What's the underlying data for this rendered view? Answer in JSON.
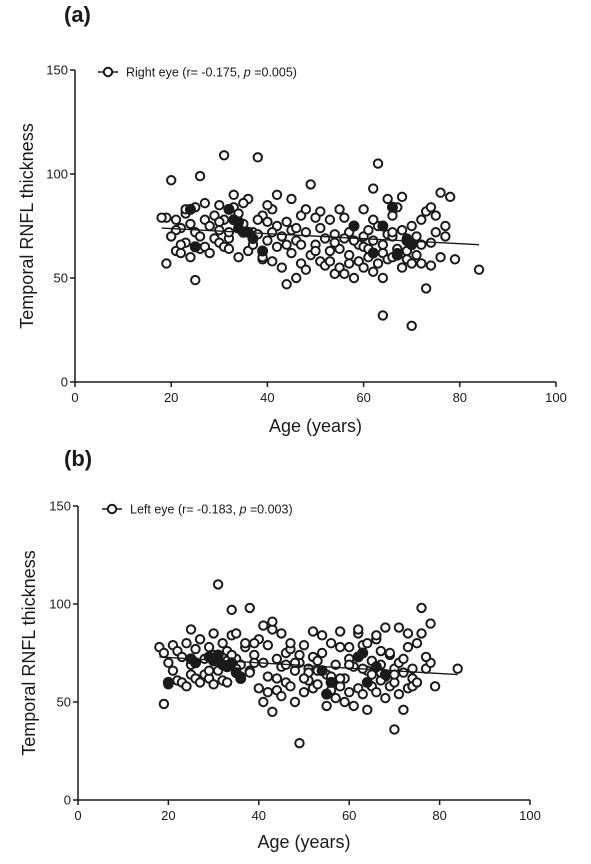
{
  "chart_data": [
    {
      "type": "scatter",
      "panel_label": "(a)",
      "legend_text": "Right eye (r= -0.175,  ",
      "legend_p": "p",
      "legend_p_value": " =0.005)",
      "legend_position": "top-left",
      "xlabel": "Age (years)",
      "ylabel": "Temporal RNFL  thickness",
      "xlim": [
        0,
        100
      ],
      "ylim": [
        0,
        150
      ],
      "xticks": [
        "0",
        "20",
        "40",
        "60",
        "80",
        "100"
      ],
      "yticks": [
        "0",
        "50",
        "100",
        "150"
      ],
      "grid": false,
      "regression": {
        "x": [
          18,
          84
        ],
        "y": [
          74,
          66
        ]
      },
      "points": [
        [
          20,
          97
        ],
        [
          31,
          109
        ],
        [
          38,
          108
        ],
        [
          26,
          99
        ],
        [
          63,
          105
        ],
        [
          19,
          79
        ],
        [
          21,
          78
        ],
        [
          22,
          74
        ],
        [
          23,
          81
        ],
        [
          24,
          76
        ],
        [
          25,
          72
        ],
        [
          26,
          70
        ],
        [
          27,
          78
        ],
        [
          28,
          75
        ],
        [
          29,
          80
        ],
        [
          30,
          73
        ],
        [
          31,
          78
        ],
        [
          32,
          69
        ],
        [
          33,
          84
        ],
        [
          34,
          81
        ],
        [
          35,
          76
        ],
        [
          36,
          88
        ],
        [
          37,
          72
        ],
        [
          38,
          71
        ],
        [
          39,
          80
        ],
        [
          40,
          68
        ],
        [
          41,
          83
        ],
        [
          42,
          75
        ],
        [
          43,
          70
        ],
        [
          44,
          77
        ],
        [
          45,
          73
        ],
        [
          46,
          68
        ],
        [
          47,
          80
        ],
        [
          48,
          72
        ],
        [
          49,
          95
        ],
        [
          50,
          66
        ],
        [
          51,
          74
        ],
        [
          52,
          69
        ],
        [
          53,
          63
        ],
        [
          54,
          71
        ],
        [
          55,
          64
        ],
        [
          56,
          79
        ],
        [
          57,
          61
        ],
        [
          58,
          75
        ],
        [
          59,
          66
        ],
        [
          60,
          70
        ],
        [
          61,
          73
        ],
        [
          62,
          68
        ],
        [
          63,
          75
        ],
        [
          64,
          62
        ],
        [
          65,
          71
        ],
        [
          66,
          80
        ],
        [
          67,
          64
        ],
        [
          68,
          73
        ],
        [
          69,
          59
        ],
        [
          70,
          75
        ],
        [
          71,
          61
        ],
        [
          72,
          66
        ],
        [
          73,
          82
        ],
        [
          74,
          67
        ],
        [
          75,
          72
        ],
        [
          76,
          91
        ],
        [
          77,
          70
        ],
        [
          78,
          89
        ],
        [
          21,
          63
        ],
        [
          22,
          62
        ],
        [
          23,
          67
        ],
        [
          24,
          60
        ],
        [
          25,
          49
        ],
        [
          26,
          64
        ],
        [
          27,
          65
        ],
        [
          28,
          62
        ],
        [
          29,
          69
        ],
        [
          30,
          67
        ],
        [
          31,
          65
        ],
        [
          32,
          64
        ],
        [
          34,
          60
        ],
        [
          36,
          63
        ],
        [
          39,
          59
        ],
        [
          41,
          58
        ],
        [
          43,
          55
        ],
        [
          44,
          47
        ],
        [
          45,
          62
        ],
        [
          46,
          50
        ],
        [
          47,
          57
        ],
        [
          48,
          54
        ],
        [
          49,
          61
        ],
        [
          50,
          63
        ],
        [
          51,
          58
        ],
        [
          52,
          56
        ],
        [
          53,
          58
        ],
        [
          54,
          52
        ],
        [
          55,
          55
        ],
        [
          56,
          52
        ],
        [
          57,
          57
        ],
        [
          58,
          50
        ],
        [
          59,
          58
        ],
        [
          60,
          55
        ],
        [
          61,
          60
        ],
        [
          62,
          53
        ],
        [
          63,
          57
        ],
        [
          64,
          50
        ],
        [
          65,
          59
        ],
        [
          66,
          60
        ],
        [
          67,
          62
        ],
        [
          68,
          55
        ],
        [
          69,
          63
        ],
        [
          70,
          57
        ],
        [
          72,
          57
        ],
        [
          74,
          56
        ],
        [
          19,
          57
        ],
        [
          18,
          79
        ],
        [
          64,
          32
        ],
        [
          70,
          27
        ],
        [
          73,
          45
        ],
        [
          84,
          54
        ],
        [
          40,
          85
        ],
        [
          42,
          90
        ],
        [
          45,
          88
        ],
        [
          48,
          83
        ],
        [
          55,
          83
        ],
        [
          60,
          83
        ],
        [
          62,
          93
        ],
        [
          65,
          88
        ],
        [
          67,
          84
        ],
        [
          68,
          89
        ],
        [
          72,
          78
        ],
        [
          74,
          84
        ],
        [
          75,
          80
        ],
        [
          77,
          75
        ],
        [
          79,
          59
        ],
        [
          76,
          60
        ],
        [
          71,
          70
        ],
        [
          57,
          72
        ],
        [
          53,
          78
        ],
        [
          51,
          82
        ],
        [
          44,
          66
        ],
        [
          42,
          65
        ],
        [
          39,
          60
        ],
        [
          37,
          66
        ],
        [
          33,
          90
        ],
        [
          35,
          86
        ],
        [
          30,
          85
        ],
        [
          27,
          86
        ],
        [
          25,
          84
        ],
        [
          23,
          83
        ],
        [
          21,
          73
        ],
        [
          20,
          70
        ],
        [
          22,
          66
        ],
        [
          38,
          78
        ],
        [
          40,
          77
        ],
        [
          46,
          74
        ],
        [
          50,
          79
        ],
        [
          58,
          68
        ],
        [
          62,
          78
        ],
        [
          66,
          70
        ],
        [
          69,
          69
        ],
        [
          30,
          77
        ],
        [
          32,
          72
        ],
        [
          41,
          72
        ],
        [
          47,
          66
        ],
        [
          54,
          67
        ],
        [
          56,
          69
        ],
        [
          60,
          65
        ],
        [
          64,
          66
        ],
        [
          66,
          72
        ],
        [
          61,
          64
        ]
      ],
      "filled_points": [
        [
          24,
          83
        ],
        [
          25,
          65
        ],
        [
          32,
          83
        ],
        [
          33,
          78
        ],
        [
          34,
          74
        ],
        [
          34,
          77
        ],
        [
          35,
          72
        ],
        [
          36,
          72
        ],
        [
          37,
          69
        ],
        [
          39,
          63
        ],
        [
          58,
          75
        ],
        [
          62,
          62
        ],
        [
          64,
          75
        ],
        [
          66,
          84
        ],
        [
          67,
          61
        ],
        [
          69,
          68
        ],
        [
          70,
          66
        ]
      ]
    },
    {
      "type": "scatter",
      "panel_label": "(b)",
      "legend_text": "Left eye (r= -0.183,  ",
      "legend_p": "p",
      "legend_p_value": " =0.003)",
      "legend_position": "top-left",
      "xlabel": "Age (years)",
      "ylabel": "Temporal RNFL  thickness",
      "xlim": [
        0,
        100
      ],
      "ylim": [
        0,
        150
      ],
      "xticks": [
        "0",
        "20",
        "40",
        "60",
        "80",
        "100"
      ],
      "yticks": [
        "0",
        "50",
        "100",
        "150"
      ],
      "grid": false,
      "regression": {
        "x": [
          18,
          84
        ],
        "y": [
          73,
          64
        ]
      },
      "points": [
        [
          31,
          110
        ],
        [
          34,
          97
        ],
        [
          38,
          98
        ],
        [
          49,
          29
        ],
        [
          70,
          36
        ],
        [
          76,
          98
        ],
        [
          78,
          90
        ],
        [
          84,
          67
        ],
        [
          18,
          78
        ],
        [
          19,
          75
        ],
        [
          20,
          70
        ],
        [
          21,
          79
        ],
        [
          22,
          76
        ],
        [
          23,
          73
        ],
        [
          24,
          80
        ],
        [
          25,
          69
        ],
        [
          26,
          77
        ],
        [
          27,
          82
        ],
        [
          28,
          72
        ],
        [
          29,
          78
        ],
        [
          30,
          74
        ],
        [
          31,
          71
        ],
        [
          32,
          80
        ],
        [
          33,
          76
        ],
        [
          34,
          84
        ],
        [
          35,
          72
        ],
        [
          36,
          69
        ],
        [
          37,
          78
        ],
        [
          38,
          66
        ],
        [
          39,
          74
        ],
        [
          40,
          82
        ],
        [
          41,
          70
        ],
        [
          42,
          79
        ],
        [
          43,
          87
        ],
        [
          44,
          72
        ],
        [
          45,
          68
        ],
        [
          46,
          75
        ],
        [
          47,
          77
        ],
        [
          48,
          66
        ],
        [
          49,
          70
        ],
        [
          50,
          79
        ],
        [
          51,
          67
        ],
        [
          52,
          73
        ],
        [
          53,
          71
        ],
        [
          54,
          75
        ],
        [
          55,
          64
        ],
        [
          56,
          80
        ],
        [
          57,
          69
        ],
        [
          58,
          78
        ],
        [
          59,
          62
        ],
        [
          60,
          72
        ],
        [
          61,
          68
        ],
        [
          62,
          85
        ],
        [
          63,
          79
        ],
        [
          64,
          66
        ],
        [
          65,
          71
        ],
        [
          66,
          82
        ],
        [
          67,
          76
        ],
        [
          68,
          63
        ],
        [
          69,
          74
        ],
        [
          70,
          67
        ],
        [
          71,
          70
        ],
        [
          72,
          65
        ],
        [
          73,
          78
        ],
        [
          74,
          62
        ],
        [
          75,
          80
        ],
        [
          76,
          85
        ],
        [
          77,
          67
        ],
        [
          78,
          70
        ],
        [
          79,
          58
        ],
        [
          19,
          49
        ],
        [
          20,
          59
        ],
        [
          21,
          66
        ],
        [
          22,
          61
        ],
        [
          23,
          60
        ],
        [
          24,
          58
        ],
        [
          25,
          64
        ],
        [
          26,
          62
        ],
        [
          27,
          60
        ],
        [
          28,
          64
        ],
        [
          29,
          62
        ],
        [
          30,
          59
        ],
        [
          32,
          61
        ],
        [
          33,
          60
        ],
        [
          36,
          63
        ],
        [
          38,
          65
        ],
        [
          40,
          57
        ],
        [
          41,
          50
        ],
        [
          42,
          55
        ],
        [
          43,
          45
        ],
        [
          44,
          56
        ],
        [
          45,
          53
        ],
        [
          46,
          60
        ],
        [
          47,
          58
        ],
        [
          48,
          50
        ],
        [
          50,
          55
        ],
        [
          51,
          61
        ],
        [
          52,
          57
        ],
        [
          53,
          59
        ],
        [
          55,
          48
        ],
        [
          56,
          56
        ],
        [
          57,
          52
        ],
        [
          58,
          58
        ],
        [
          59,
          50
        ],
        [
          60,
          55
        ],
        [
          61,
          48
        ],
        [
          62,
          57
        ],
        [
          63,
          54
        ],
        [
          64,
          46
        ],
        [
          65,
          58
        ],
        [
          66,
          55
        ],
        [
          67,
          61
        ],
        [
          68,
          52
        ],
        [
          69,
          58
        ],
        [
          70,
          60
        ],
        [
          71,
          54
        ],
        [
          72,
          46
        ],
        [
          73,
          57
        ],
        [
          74,
          58
        ],
        [
          75,
          60
        ],
        [
          41,
          89
        ],
        [
          43,
          91
        ],
        [
          45,
          85
        ],
        [
          52,
          86
        ],
        [
          54,
          84
        ],
        [
          58,
          86
        ],
        [
          62,
          87
        ],
        [
          66,
          84
        ],
        [
          68,
          88
        ],
        [
          71,
          88
        ],
        [
          73,
          85
        ],
        [
          25,
          87
        ],
        [
          27,
          82
        ],
        [
          30,
          85
        ],
        [
          35,
          85
        ],
        [
          37,
          80
        ],
        [
          39,
          80
        ],
        [
          47,
          80
        ],
        [
          49,
          74
        ],
        [
          60,
          78
        ],
        [
          64,
          80
        ],
        [
          67,
          69
        ],
        [
          69,
          75
        ],
        [
          72,
          72
        ],
        [
          74,
          67
        ],
        [
          77,
          73
        ],
        [
          31,
          66
        ],
        [
          33,
          71
        ],
        [
          35,
          67
        ],
        [
          39,
          70
        ],
        [
          42,
          63
        ],
        [
          44,
          62
        ],
        [
          46,
          69
        ],
        [
          48,
          70
        ],
        [
          51,
          65
        ],
        [
          53,
          66
        ],
        [
          56,
          63
        ],
        [
          58,
          62
        ],
        [
          60,
          69
        ],
        [
          63,
          67
        ],
        [
          65,
          64
        ],
        [
          67,
          65
        ],
        [
          70,
          64
        ],
        [
          29,
          66
        ],
        [
          34,
          74
        ],
        [
          50,
          62
        ]
      ],
      "filled_points": [
        [
          20,
          60
        ],
        [
          25,
          72
        ],
        [
          26,
          70
        ],
        [
          29,
          73
        ],
        [
          30,
          71
        ],
        [
          31,
          74
        ],
        [
          32,
          69
        ],
        [
          33,
          68
        ],
        [
          34,
          70
        ],
        [
          35,
          65
        ],
        [
          36,
          62
        ],
        [
          54,
          66
        ],
        [
          55,
          54
        ],
        [
          56,
          60
        ],
        [
          62,
          73
        ],
        [
          63,
          75
        ],
        [
          64,
          60
        ],
        [
          66,
          68
        ],
        [
          68,
          64
        ]
      ]
    }
  ]
}
